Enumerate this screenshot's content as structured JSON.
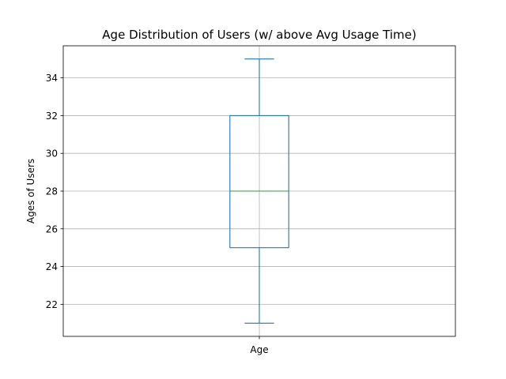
{
  "chart_data": {
    "type": "box",
    "title": "Age Distribution of Users (w/ above Avg Usage Time)",
    "xlabel": "",
    "ylabel": "Ages of Users",
    "categories": [
      "Age"
    ],
    "boxes": [
      {
        "label": "Age",
        "whisker_low": 21,
        "q1": 25,
        "median": 28,
        "q3": 32,
        "whisker_high": 35
      }
    ],
    "yticks": [
      22,
      24,
      26,
      28,
      30,
      32,
      34
    ],
    "ylim": [
      20.3,
      35.7
    ],
    "grid": true,
    "colors": {
      "box": "#1f77b4",
      "median": "#2ca02c",
      "grid": "#b0b0b0"
    }
  }
}
